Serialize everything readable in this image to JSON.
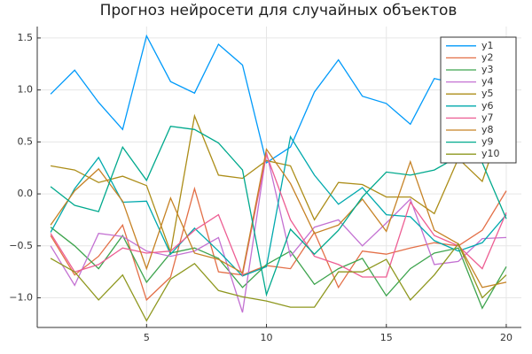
{
  "chart_data": {
    "type": "line",
    "title": "Прогноз нейросети для случайных объектов",
    "x": [
      1,
      2,
      3,
      4,
      5,
      6,
      7,
      8,
      9,
      10,
      11,
      12,
      13,
      14,
      15,
      16,
      17,
      18,
      19,
      20
    ],
    "xlim": [
      0.44,
      20.63
    ],
    "xticks": [
      5,
      10,
      15,
      20
    ],
    "ylim": [
      -1.285,
      1.61
    ],
    "yticks": [
      {
        "value": -1.0,
        "label": "−1.0"
      },
      {
        "value": -0.5,
        "label": "−0.5"
      },
      {
        "value": 0.0,
        "label": "0.0"
      },
      0.5,
      {
        "value": 1.0,
        "label": "1.0"
      },
      1.5
    ],
    "grid": true,
    "legend": "top-right",
    "series": [
      {
        "name": "y1",
        "color": "#009AFA",
        "values": [
          0.96,
          1.19,
          0.88,
          0.62,
          1.52,
          1.08,
          0.97,
          1.44,
          1.24,
          0.3,
          0.45,
          0.98,
          1.29,
          0.94,
          0.87,
          0.67,
          1.11,
          1.06,
          1.02,
          1.07
        ]
      },
      {
        "name": "y2",
        "color": "#E36F47",
        "values": [
          -0.4,
          -0.78,
          -0.6,
          -0.3,
          -1.02,
          -0.8,
          0.05,
          -0.75,
          -0.78,
          -0.69,
          -0.72,
          -0.37,
          -0.9,
          -0.55,
          -0.58,
          -0.52,
          -0.47,
          -0.5,
          -0.35,
          0.03
        ]
      },
      {
        "name": "y3",
        "color": "#3EA44E",
        "values": [
          -0.32,
          -0.5,
          -0.72,
          -0.4,
          -0.85,
          -0.57,
          -0.52,
          -0.62,
          -0.9,
          -0.68,
          -0.55,
          -0.87,
          -0.72,
          -0.62,
          -0.98,
          -0.72,
          -0.57,
          -0.52,
          -1.1,
          -0.7
        ]
      },
      {
        "name": "y4",
        "color": "#C371D2",
        "values": [
          -0.5,
          -0.88,
          -0.38,
          -0.41,
          -0.55,
          -0.6,
          -0.55,
          -0.42,
          -1.14,
          0.4,
          -0.6,
          -0.32,
          -0.25,
          -0.5,
          -0.28,
          -0.05,
          -0.68,
          -0.65,
          -0.43,
          -0.42
        ]
      },
      {
        "name": "y5",
        "color": "#AC8D18",
        "values": [
          0.27,
          0.23,
          0.11,
          0.17,
          0.08,
          -0.56,
          0.75,
          0.18,
          0.15,
          0.32,
          0.27,
          -0.25,
          0.11,
          0.09,
          -0.03,
          -0.03,
          -0.19,
          0.34,
          0.12,
          0.8
        ]
      },
      {
        "name": "y6",
        "color": "#00A9AD",
        "values": [
          -0.37,
          0.05,
          0.35,
          -0.08,
          -0.07,
          -0.58,
          -0.33,
          -0.55,
          -0.79,
          -0.7,
          0.55,
          0.18,
          -0.1,
          0.06,
          -0.2,
          -0.22,
          -0.45,
          -0.55,
          -0.47,
          -0.2
        ]
      },
      {
        "name": "y7",
        "color": "#ED5E93",
        "values": [
          -0.38,
          -0.75,
          -0.68,
          -0.52,
          -0.57,
          -0.55,
          -0.35,
          -0.2,
          -0.78,
          0.38,
          -0.25,
          -0.6,
          -0.68,
          -0.8,
          -0.8,
          -0.08,
          -0.4,
          -0.5,
          -0.72,
          -0.18
        ]
      },
      {
        "name": "y8",
        "color": "#C68225",
        "values": [
          -0.3,
          0.03,
          0.24,
          -0.07,
          -0.72,
          -0.04,
          -0.57,
          -0.63,
          -0.76,
          0.43,
          0.1,
          -0.38,
          -0.3,
          -0.05,
          -0.36,
          0.31,
          -0.35,
          -0.48,
          -0.9,
          -0.85
        ]
      },
      {
        "name": "y9",
        "color": "#00A98D",
        "values": [
          0.07,
          -0.11,
          -0.17,
          0.45,
          0.13,
          0.65,
          0.62,
          0.49,
          0.23,
          -0.97,
          -0.34,
          -0.58,
          -0.35,
          -0.03,
          0.21,
          0.18,
          0.23,
          0.36,
          0.3,
          -0.24
        ]
      },
      {
        "name": "y10",
        "color": "#8E971E",
        "values": [
          -0.62,
          -0.75,
          -1.02,
          -0.78,
          -1.22,
          -0.82,
          -0.67,
          -0.93,
          -0.99,
          -1.03,
          -1.09,
          -1.09,
          -0.75,
          -0.75,
          -0.63,
          -1.02,
          -0.78,
          -0.48,
          -1.0,
          -0.78
        ]
      }
    ]
  }
}
